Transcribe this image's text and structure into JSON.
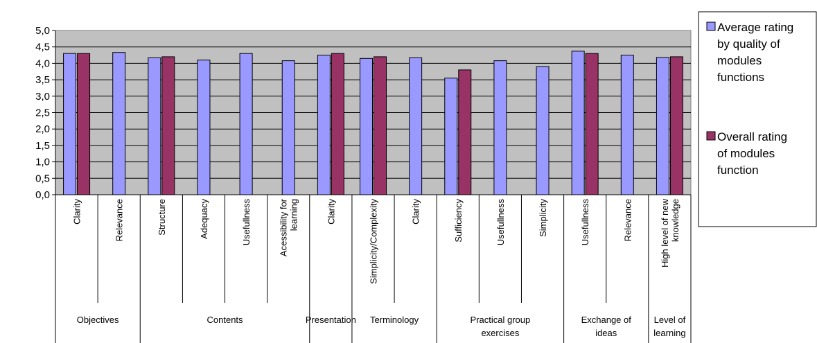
{
  "chart_data": {
    "type": "bar",
    "title": "",
    "xlabel": "",
    "ylabel": "",
    "ylim": [
      0,
      5
    ],
    "ytick_step": 0.5,
    "yticks": [
      "0,0",
      "0,5",
      "1,0",
      "1,5",
      "2,0",
      "2,5",
      "3,0",
      "3,5",
      "4,0",
      "4,5",
      "5,0"
    ],
    "grid": true,
    "legend_position": "right",
    "categories": [
      "Clarity",
      "Relevance",
      "Structure",
      "Adequacy",
      "Usefullness",
      "Acessibility for learning",
      "Clarity",
      "Simplicity/Complexity",
      "Clarity",
      "Sufficiency",
      "Usefullness",
      "Simplicity",
      "Usefullness",
      "Relevance",
      "High level of new knowledge"
    ],
    "groups": [
      {
        "name": "Objectives",
        "span": 2
      },
      {
        "name": "Contents",
        "span": 4
      },
      {
        "name": "Presentation",
        "span": 1
      },
      {
        "name": "Terminology",
        "span": 2
      },
      {
        "name": "Practical group exercises",
        "span": 3
      },
      {
        "name": "Exchange of ideas",
        "span": 2
      },
      {
        "name": "Level of learning",
        "span": 1
      }
    ],
    "series": [
      {
        "name": "Average rating by quality of modules functions",
        "color": "#9999ff",
        "values": [
          4.3,
          4.33,
          4.17,
          4.1,
          4.3,
          4.08,
          4.25,
          4.15,
          4.17,
          3.55,
          4.08,
          3.9,
          4.37,
          4.25,
          4.18
        ]
      },
      {
        "name": "Overall rating of modules function",
        "color": "#993366",
        "values": [
          4.3,
          null,
          4.2,
          null,
          null,
          null,
          4.3,
          4.2,
          null,
          3.8,
          null,
          null,
          4.3,
          null,
          4.2
        ]
      }
    ]
  }
}
